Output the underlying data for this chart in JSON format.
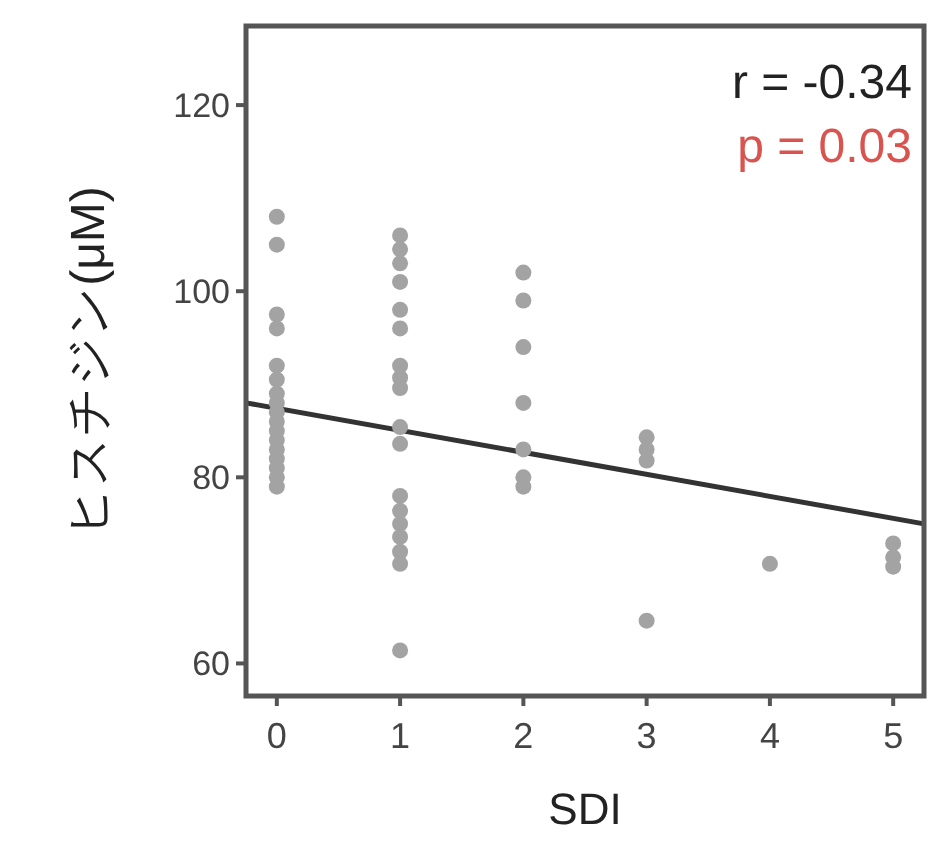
{
  "chart_data": {
    "type": "scatter",
    "xlabel": "SDI",
    "ylabel": "ヒスチジン(μM)",
    "xlim": [
      -0.25,
      5.25
    ],
    "xticks": [
      0,
      1,
      2,
      3,
      4,
      5
    ],
    "ylim": [
      56.5,
      128.5
    ],
    "yticks": [
      60,
      80,
      100,
      120
    ],
    "grid": false,
    "series": [
      {
        "type": "line",
        "color": "#333333",
        "x": [
          -0.25,
          5.25
        ],
        "values": [
          88,
          75
        ]
      },
      {
        "type": "scatter",
        "marker": "circle",
        "color": "#a3a3a3",
        "x": [
          0,
          0,
          0,
          0,
          0,
          0,
          0,
          0,
          0,
          0,
          0,
          0,
          0,
          0,
          0,
          0,
          0,
          1,
          1,
          1,
          1,
          1,
          1,
          1,
          1,
          1,
          1,
          1,
          1,
          1,
          1,
          1,
          1,
          1,
          1,
          2,
          2,
          2,
          2,
          2,
          2,
          2,
          3,
          3,
          3,
          3,
          4,
          5,
          5,
          5
        ],
        "values": [
          108,
          105,
          97.5,
          96,
          92,
          90.5,
          89,
          88,
          87,
          86,
          85,
          84,
          83,
          82,
          81,
          80,
          79,
          106,
          104.5,
          103,
          101,
          98,
          96,
          92,
          90.7,
          89.6,
          85.4,
          83.6,
          78,
          76.4,
          75,
          73.6,
          72,
          70.7,
          61.4,
          102,
          99,
          94,
          88,
          83,
          80,
          79,
          84.3,
          83,
          81.8,
          64.6,
          70.7,
          72.9,
          71.4,
          70.4
        ]
      }
    ],
    "annotations": [
      "r = -0.34",
      "p = 0.03"
    ]
  }
}
